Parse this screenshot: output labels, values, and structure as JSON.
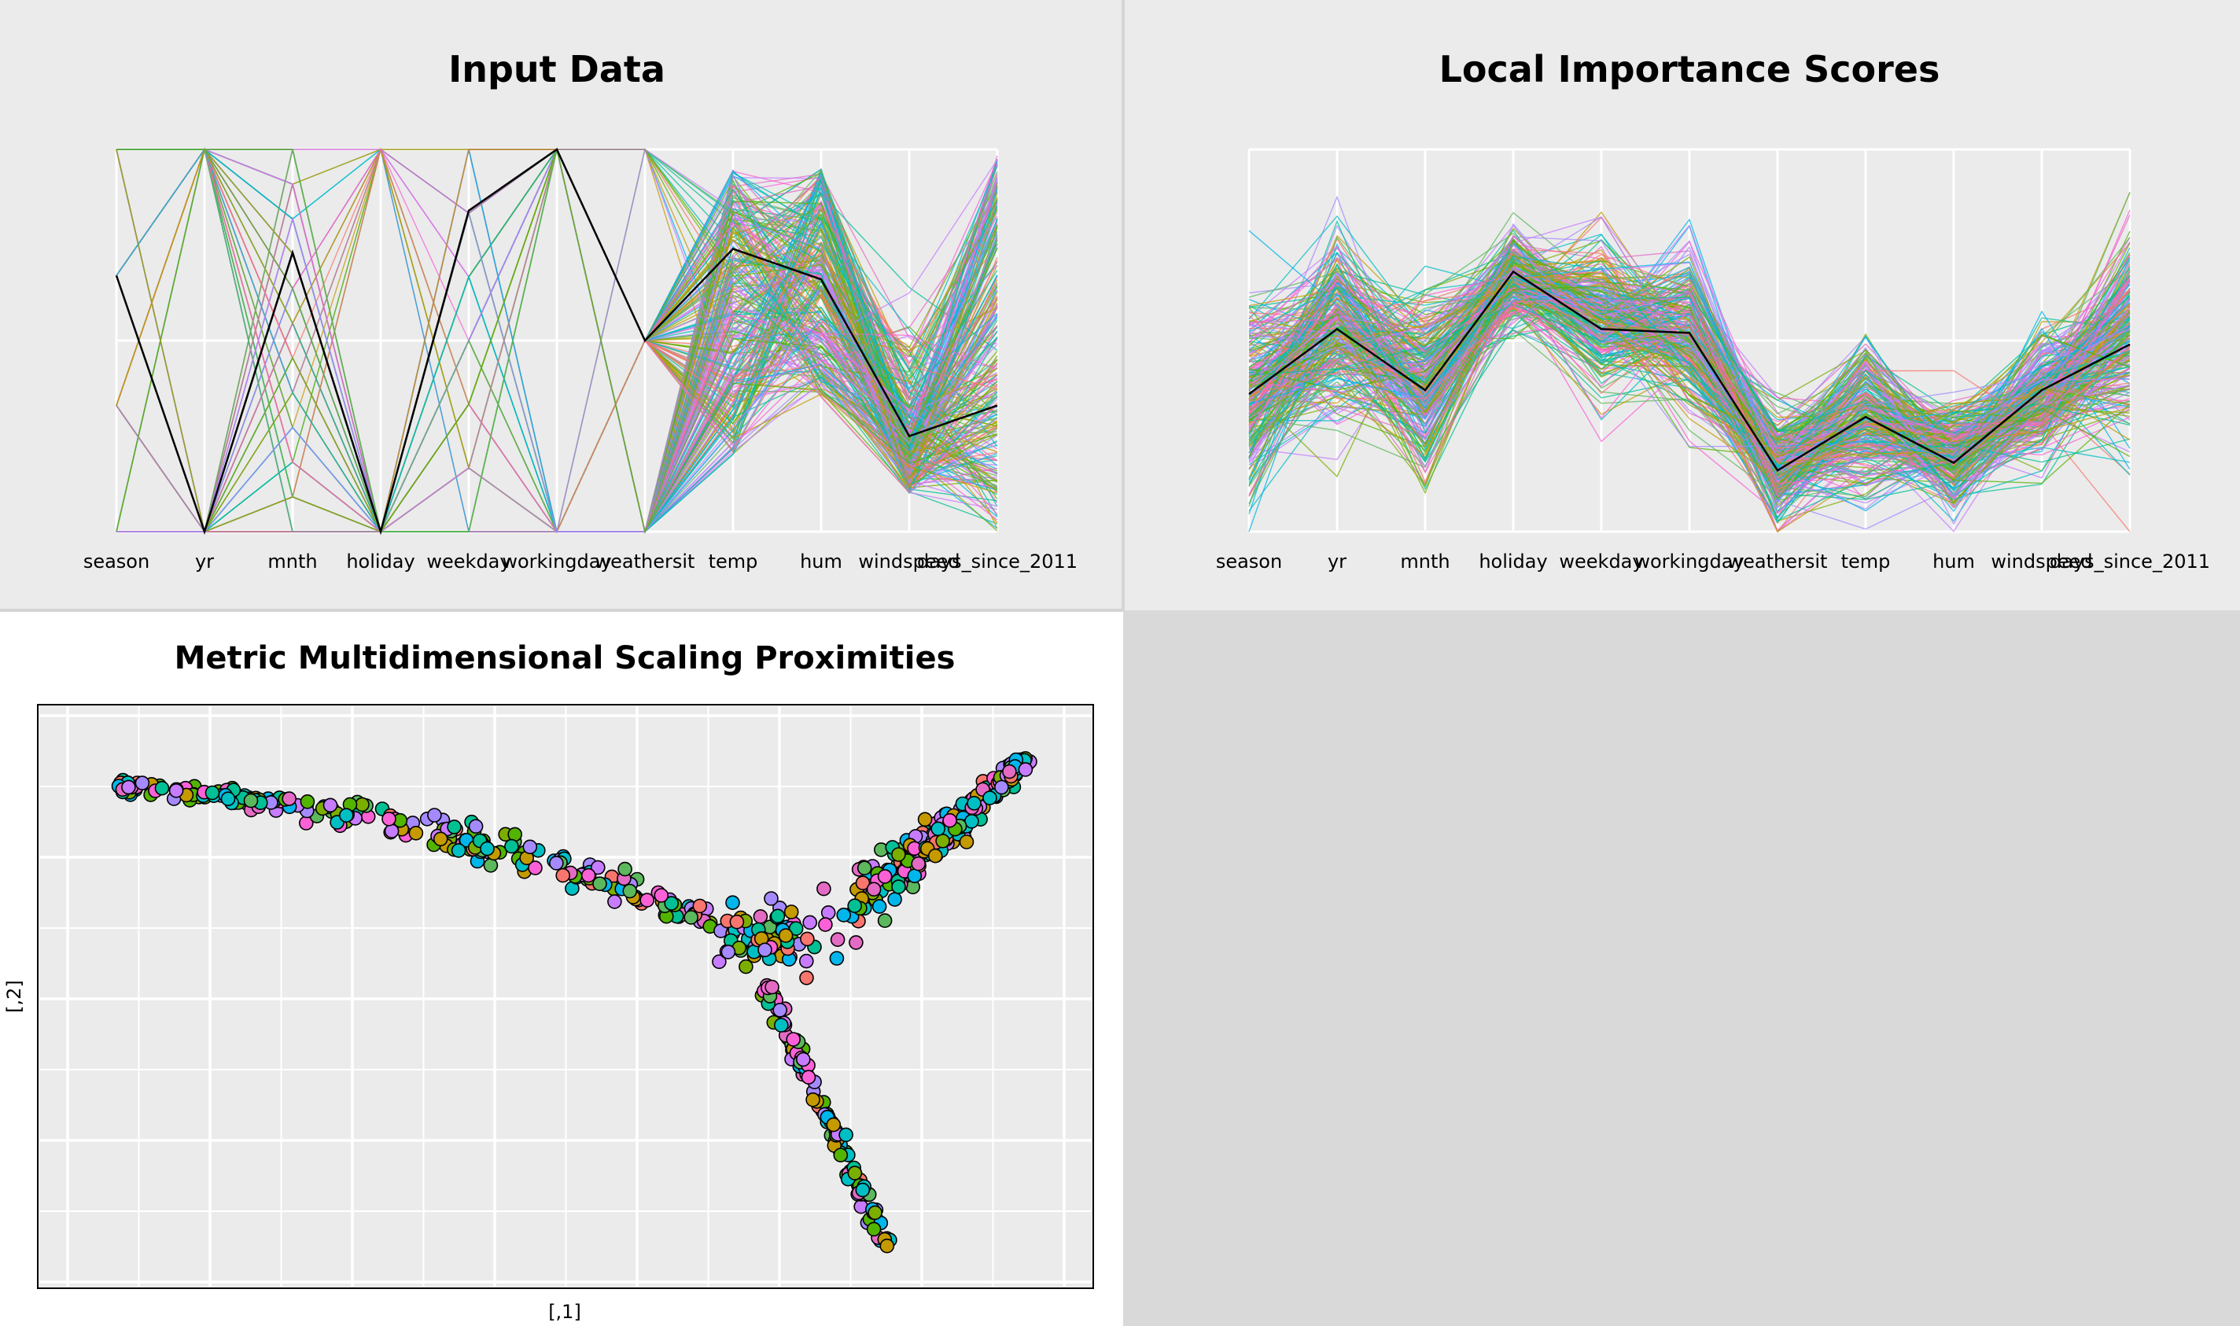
{
  "panels": {
    "input": {
      "title": "Input Data"
    },
    "importance": {
      "title": "Local Importance Scores"
    },
    "mds": {
      "title": "Metric Multidimensional Scaling Proximities",
      "xlabel": "[,1]",
      "ylabel": "[,2]"
    }
  },
  "chart_data": [
    {
      "type": "parallel_coordinates",
      "title": "Input Data",
      "variables": [
        "season",
        "yr",
        "mnth",
        "holiday",
        "weekday",
        "workingday",
        "weathersit",
        "temp",
        "hum",
        "windspeed",
        "days_since_2011"
      ],
      "ylim": [
        0,
        1
      ],
      "grid": true,
      "legend": "none",
      "highlighted_series": {
        "color": "#000000",
        "values": [
          0.67,
          0.0,
          0.73,
          0.0,
          0.84,
          1.0,
          0.5,
          0.74,
          0.66,
          0.25,
          0.33
        ]
      },
      "series_count_approx": 731
    },
    {
      "type": "parallel_coordinates",
      "title": "Local Importance Scores",
      "variables": [
        "season",
        "yr",
        "mnth",
        "holiday",
        "weekday",
        "workingday",
        "weathersit",
        "temp",
        "hum",
        "windspeed",
        "days_since_2011"
      ],
      "grid": true,
      "legend": "none",
      "highlighted_series": {
        "color": "#000000",
        "values": [
          0.36,
          0.53,
          0.37,
          0.68,
          0.53,
          0.52,
          0.16,
          0.3,
          0.18,
          0.37,
          0.49
        ]
      },
      "series_count_approx": 731
    },
    {
      "type": "scatter",
      "title": "Metric Multidimensional Scaling Proximities",
      "xlabel": "[,1]",
      "ylabel": "[,2]",
      "grid": true,
      "legend": "none",
      "point_colors": [
        "#f8766d",
        "#7cae00",
        "#00bfc4",
        "#c77cff",
        "#5cb85c",
        "#e36bc4",
        "#c49a00",
        "#53b400",
        "#00c094",
        "#00b6eb",
        "#a58aff",
        "#fb61d7"
      ],
      "ylim": [
        -1,
        1
      ],
      "xlim": [
        -1,
        1
      ],
      "arms": [
        {
          "name": "left",
          "from": [
            -0.85,
            0.7
          ],
          "to": [
            0.28,
            0.24
          ]
        },
        {
          "name": "upper-right",
          "from": [
            0.52,
            0.24
          ],
          "to": [
            0.88,
            0.82
          ]
        },
        {
          "name": "lower",
          "from": [
            0.38,
            0.02
          ],
          "to": [
            0.6,
            -0.85
          ]
        }
      ]
    }
  ],
  "colors": {
    "panel_bg": "#ebebeb",
    "grid": "#ffffff",
    "page_bg": "#d9d9d9"
  }
}
